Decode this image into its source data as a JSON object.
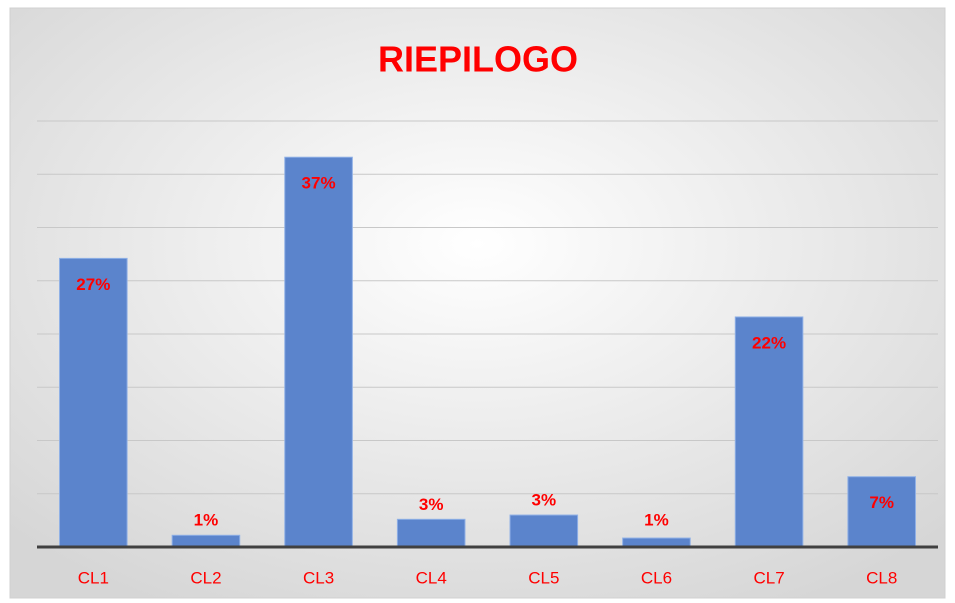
{
  "chart_data": {
    "type": "bar",
    "title": "RIEPILOGO",
    "categories": [
      "CL1",
      "CL2",
      "CL3",
      "CL4",
      "CL5",
      "CL6",
      "CL7",
      "CL8"
    ],
    "values": [
      27.1,
      1.1,
      36.6,
      2.6,
      3.0,
      0.84,
      21.6,
      6.6
    ],
    "value_labels": [
      "27%",
      "1%",
      "37%",
      "3%",
      "3%",
      "1%",
      "22%",
      "7%"
    ],
    "color": "#5b84cc",
    "ylim": [
      0,
      40
    ],
    "yticks": [
      0,
      5,
      10,
      15,
      20,
      25,
      30,
      35,
      40
    ],
    "grid": true
  }
}
